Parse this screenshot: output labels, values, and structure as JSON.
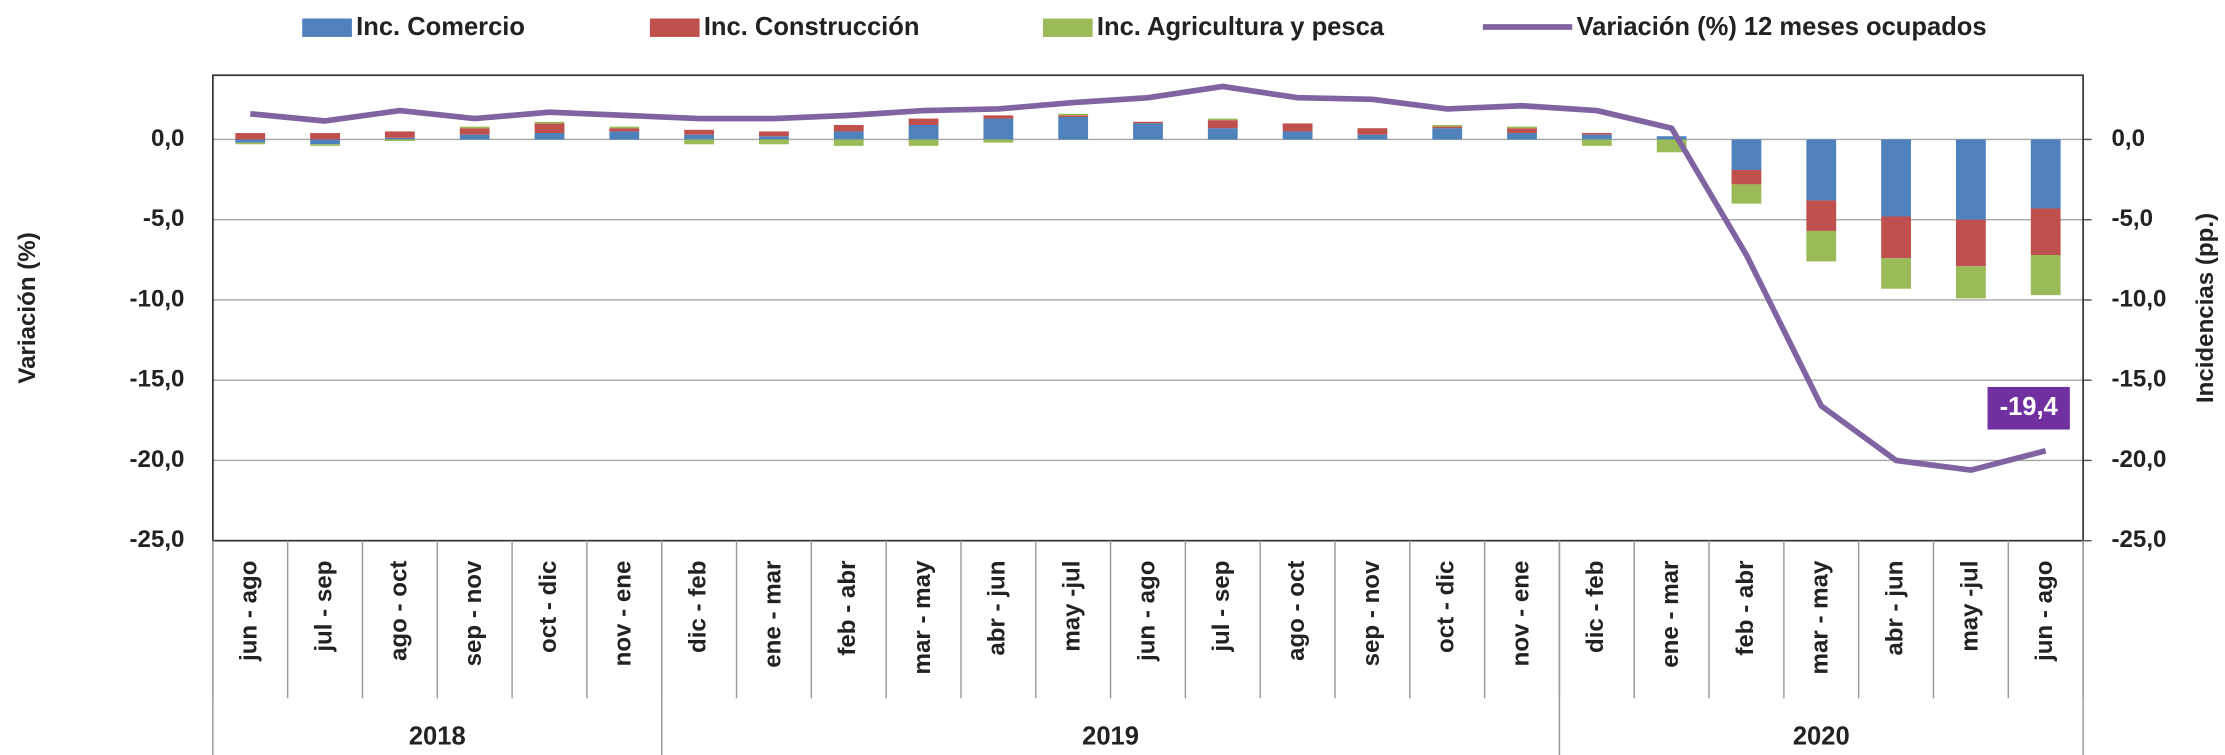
{
  "chart_data": {
    "type": "bar_line",
    "categories": [
      "jun - ago",
      "jul - sep",
      "ago - oct",
      "sep - nov",
      "oct - dic",
      "nov - ene",
      "dic - feb",
      "ene - mar",
      "feb - abr",
      "mar - may",
      "abr - jun",
      "may -jul",
      "jun - ago",
      "jul - sep",
      "ago - oct",
      "sep - nov",
      "oct - dic",
      "nov - ene",
      "dic - feb",
      "ene - mar",
      "feb - abr",
      "mar - may",
      "abr - jun",
      "may -jul",
      "jun - ago"
    ],
    "x_groups": [
      {
        "label": "2018",
        "count": 6
      },
      {
        "label": "2019",
        "count": 12
      },
      {
        "label": "2020",
        "count": 7
      }
    ],
    "y_label": "Variación (%)",
    "y2_label": "Incidencias (pp.)",
    "ylim": [
      -25,
      4
    ],
    "yticks": [
      {
        "value": 0,
        "label": "0,0"
      },
      {
        "value": -5,
        "label": "-5,0"
      },
      {
        "value": -10,
        "label": "-10,0"
      },
      {
        "value": -15,
        "label": "-15,0"
      },
      {
        "value": -20,
        "label": "-20,0"
      },
      {
        "value": -25,
        "label": "-25,0"
      }
    ],
    "y2lim": [
      -25,
      4
    ],
    "y2ticks": [
      {
        "value": 0,
        "label": "0,0"
      },
      {
        "value": -5,
        "label": "-5,0"
      },
      {
        "value": -10,
        "label": "-10,0"
      },
      {
        "value": -15,
        "label": "-15,0"
      },
      {
        "value": -20,
        "label": "-20,0"
      },
      {
        "value": -25,
        "label": "-25,0"
      }
    ],
    "grid": true,
    "legend": "top",
    "series": [
      {
        "name": "Inc. Comercio",
        "kind": "bar",
        "axis": "y2",
        "color": "#4f81bd",
        "values": [
          -0.2,
          -0.3,
          0.1,
          0.3,
          0.4,
          0.5,
          0.3,
          0.2,
          0.5,
          0.9,
          1.3,
          1.4,
          1.0,
          0.7,
          0.5,
          0.3,
          0.7,
          0.4,
          0.3,
          0.2,
          -1.9,
          -3.8,
          -4.8,
          -5.0,
          -4.3
        ]
      },
      {
        "name": "Inc. Construcción",
        "kind": "bar",
        "axis": "y2",
        "color": "#c0504d",
        "values": [
          0.4,
          0.4,
          0.4,
          0.4,
          0.6,
          0.2,
          0.3,
          0.3,
          0.4,
          0.4,
          0.2,
          0.1,
          0.1,
          0.5,
          0.5,
          0.4,
          0.1,
          0.3,
          0.1,
          0.0,
          -0.9,
          -1.9,
          -2.6,
          -2.9,
          -2.9
        ]
      },
      {
        "name": "Inc. Agricultura y pesca",
        "kind": "bar",
        "axis": "y2",
        "color": "#9bbb59",
        "values": [
          -0.1,
          -0.1,
          -0.1,
          0.1,
          0.1,
          0.1,
          -0.3,
          -0.3,
          -0.4,
          -0.4,
          -0.2,
          0.1,
          0.0,
          0.1,
          0.0,
          0.0,
          0.1,
          0.1,
          -0.4,
          -0.8,
          -1.2,
          -1.9,
          -1.9,
          -2.0,
          -2.5
        ]
      },
      {
        "name": "Variación (%) 12 meses ocupados",
        "kind": "line",
        "color": "#8064a2",
        "values": [
          1.6,
          1.15,
          1.8,
          1.3,
          1.7,
          1.5,
          1.3,
          1.3,
          1.5,
          1.8,
          1.9,
          2.3,
          2.6,
          3.3,
          2.6,
          2.5,
          1.9,
          2.1,
          1.8,
          0.7,
          -7.2,
          -16.6,
          -20.0,
          -20.6,
          -19.4
        ],
        "value_labels": [
          null,
          null,
          null,
          null,
          null,
          null,
          null,
          null,
          null,
          null,
          null,
          null,
          null,
          null,
          null,
          null,
          null,
          null,
          null,
          null,
          null,
          null,
          null,
          null,
          "-19,4"
        ]
      }
    ]
  }
}
